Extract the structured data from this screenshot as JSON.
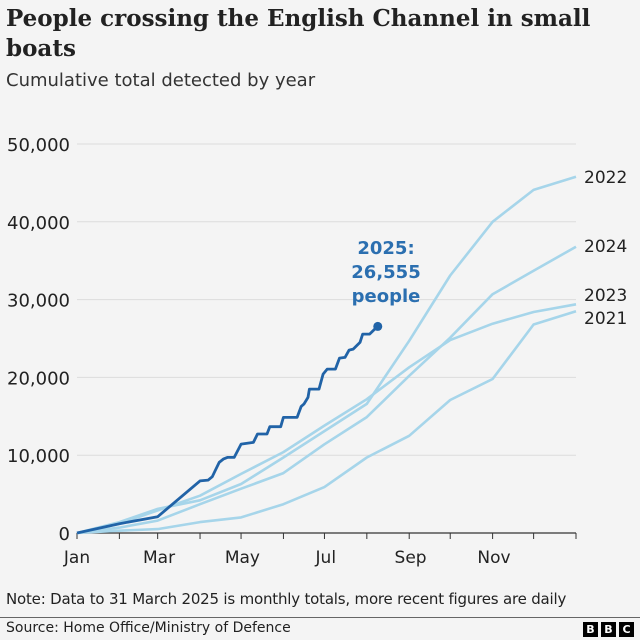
{
  "title": "People crossing the English Channel in small boats",
  "subtitle": "Cumulative total detected by year",
  "note": "Note: Data to 31 March 2025 is monthly totals, more recent figures are daily",
  "source": "Source: Home Office/Ministry of Defence",
  "logo_text": [
    "B",
    "B",
    "C"
  ],
  "colors": {
    "background": "#f4f4f4",
    "past_years": "#a6d5ea",
    "current_year": "#2163a7",
    "annotation": "#2b6fb0"
  },
  "chart_data": {
    "type": "line",
    "title": "People crossing the English Channel in small boats",
    "subtitle": "Cumulative total detected by year",
    "ylim": [
      0,
      50000
    ],
    "yticks": [
      "0",
      "10,000",
      "20,000",
      "30,000",
      "40,000",
      "50,000"
    ],
    "ytick_values": [
      0,
      10000,
      20000,
      30000,
      40000,
      50000
    ],
    "xticks": [
      "Jan",
      "Mar",
      "May",
      "Jul",
      "Sep",
      "Nov"
    ],
    "xtick_dates": [
      "01-01",
      "03-01",
      "05-01",
      "07-01",
      "09-01",
      "11-01"
    ],
    "grid": true,
    "annotation": {
      "lines": [
        "2025:",
        "26,555",
        "people"
      ]
    },
    "series": [
      {
        "name": "2022",
        "points": [
          [
            "01-01",
            0
          ],
          [
            "01-31",
            1400
          ],
          [
            "02-28",
            3100
          ],
          [
            "03-31",
            4200
          ],
          [
            "04-30",
            6300
          ],
          [
            "05-31",
            9700
          ],
          [
            "06-30",
            13100
          ],
          [
            "07-31",
            16600
          ],
          [
            "08-31",
            24700
          ],
          [
            "09-30",
            33100
          ],
          [
            "10-31",
            40000
          ],
          [
            "11-30",
            44100
          ],
          [
            "12-31",
            45800
          ]
        ]
      },
      {
        "name": "2024",
        "points": [
          [
            "01-01",
            0
          ],
          [
            "01-31",
            700
          ],
          [
            "02-28",
            1600
          ],
          [
            "03-31",
            3700
          ],
          [
            "04-30",
            5700
          ],
          [
            "05-31",
            7700
          ],
          [
            "06-30",
            11400
          ],
          [
            "07-31",
            14900
          ],
          [
            "08-31",
            20200
          ],
          [
            "09-30",
            25100
          ],
          [
            "10-31",
            30700
          ],
          [
            "11-30",
            33700
          ],
          [
            "12-31",
            36800
          ]
        ]
      },
      {
        "name": "2023",
        "points": [
          [
            "01-01",
            0
          ],
          [
            "01-31",
            1200
          ],
          [
            "02-28",
            2900
          ],
          [
            "03-31",
            4800
          ],
          [
            "04-30",
            7600
          ],
          [
            "05-31",
            10400
          ],
          [
            "06-30",
            13800
          ],
          [
            "07-31",
            17200
          ],
          [
            "08-31",
            21300
          ],
          [
            "09-30",
            24800
          ],
          [
            "10-31",
            26900
          ],
          [
            "11-30",
            28400
          ],
          [
            "12-31",
            29400
          ]
        ]
      },
      {
        "name": "2021",
        "points": [
          [
            "01-01",
            0
          ],
          [
            "01-31",
            300
          ],
          [
            "02-28",
            500
          ],
          [
            "03-31",
            1400
          ],
          [
            "04-30",
            2000
          ],
          [
            "05-31",
            3700
          ],
          [
            "06-30",
            5900
          ],
          [
            "07-31",
            9700
          ],
          [
            "08-31",
            12500
          ],
          [
            "09-30",
            17100
          ],
          [
            "10-31",
            19800
          ],
          [
            "11-30",
            26800
          ],
          [
            "12-31",
            28500
          ]
        ]
      },
      {
        "name": "2025",
        "points": [
          [
            "01-01",
            0
          ],
          [
            "01-31",
            1200
          ],
          [
            "02-28",
            2100
          ],
          [
            "03-31",
            6700
          ],
          [
            "04-06",
            6800
          ],
          [
            "04-09",
            7240
          ],
          [
            "04-11",
            8000
          ],
          [
            "04-14",
            9080
          ],
          [
            "04-17",
            9500
          ],
          [
            "04-20",
            9720
          ],
          [
            "04-25",
            9720
          ],
          [
            "04-30",
            11430
          ],
          [
            "05-09",
            11650
          ],
          [
            "05-12",
            12720
          ],
          [
            "05-19",
            12720
          ],
          [
            "05-21",
            13660
          ],
          [
            "05-29",
            13660
          ],
          [
            "05-31",
            14860
          ],
          [
            "06-10",
            14860
          ],
          [
            "06-13",
            16270
          ],
          [
            "06-15",
            16570
          ],
          [
            "06-18",
            17430
          ],
          [
            "06-19",
            18500
          ],
          [
            "06-26",
            18500
          ],
          [
            "06-29",
            20430
          ],
          [
            "07-02",
            21070
          ],
          [
            "07-08",
            21070
          ],
          [
            "07-11",
            22480
          ],
          [
            "07-15",
            22570
          ],
          [
            "07-18",
            23510
          ],
          [
            "07-21",
            23640
          ],
          [
            "07-26",
            24500
          ],
          [
            "07-28",
            25570
          ],
          [
            "08-02",
            25570
          ],
          [
            "08-05",
            26080
          ],
          [
            "08-08",
            26555
          ]
        ]
      }
    ]
  }
}
